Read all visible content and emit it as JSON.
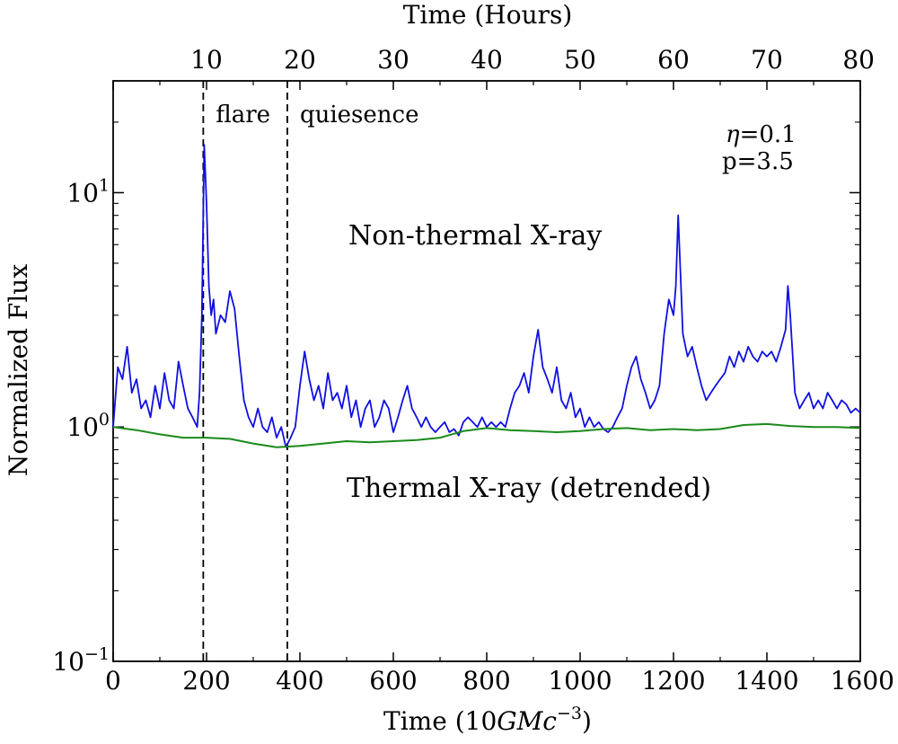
{
  "chart_data": {
    "type": "line",
    "xlabel_prefix": "Time (10",
    "xlabel_var": "GMc",
    "xlabel_exp": "−3",
    "xlabel_suffix": ")",
    "x2label": "Time (Hours)",
    "ylabel": "Normalized Flux",
    "xlim": [
      0,
      1600
    ],
    "ylim": [
      0.1,
      30
    ],
    "yscale": "log",
    "x_ticks": [
      "0",
      "200",
      "400",
      "600",
      "800",
      "1000",
      "1200",
      "1400",
      "1600"
    ],
    "x_tick_values": [
      0,
      200,
      400,
      600,
      800,
      1000,
      1200,
      1400,
      1600
    ],
    "x2_ticks": [
      "10",
      "20",
      "30",
      "40",
      "50",
      "60",
      "70",
      "80"
    ],
    "x2_tick_values": [
      10,
      20,
      30,
      40,
      50,
      60,
      70,
      80
    ],
    "x2_lim": [
      0,
      80
    ],
    "y_ticks": [
      {
        "base": "10",
        "exp": "1",
        "value": 10
      },
      {
        "base": "10",
        "exp": "0",
        "value": 1
      },
      {
        "base": "10",
        "exp": "−1",
        "value": 0.1
      }
    ],
    "grid": false,
    "vlines": [
      {
        "x": 193,
        "label": "flare"
      },
      {
        "x": 373,
        "label": "quiesence"
      }
    ],
    "params_eta_symbol": "η",
    "params_eta_value": "=0.1",
    "params_p": "p=3.5",
    "series": [
      {
        "name": "Non-thermal X-ray",
        "color": "#1010e0",
        "x": [
          0,
          10,
          20,
          30,
          40,
          50,
          60,
          70,
          80,
          90,
          100,
          110,
          120,
          130,
          140,
          150,
          160,
          170,
          180,
          185,
          190,
          195,
          200,
          205,
          210,
          215,
          220,
          230,
          240,
          250,
          260,
          270,
          280,
          290,
          300,
          310,
          320,
          330,
          340,
          350,
          360,
          370,
          380,
          390,
          400,
          410,
          420,
          430,
          440,
          450,
          460,
          470,
          480,
          490,
          500,
          510,
          520,
          530,
          540,
          550,
          560,
          570,
          580,
          590,
          600,
          610,
          620,
          630,
          640,
          650,
          660,
          670,
          680,
          690,
          700,
          710,
          720,
          730,
          740,
          750,
          760,
          770,
          780,
          790,
          800,
          810,
          820,
          830,
          840,
          850,
          860,
          870,
          880,
          890,
          900,
          910,
          920,
          930,
          940,
          950,
          960,
          970,
          980,
          990,
          1000,
          1010,
          1020,
          1030,
          1040,
          1050,
          1060,
          1070,
          1080,
          1090,
          1100,
          1110,
          1120,
          1130,
          1140,
          1150,
          1160,
          1170,
          1180,
          1190,
          1200,
          1205,
          1210,
          1215,
          1220,
          1230,
          1240,
          1250,
          1260,
          1270,
          1280,
          1290,
          1300,
          1310,
          1320,
          1330,
          1340,
          1350,
          1360,
          1370,
          1380,
          1390,
          1400,
          1410,
          1420,
          1430,
          1440,
          1445,
          1450,
          1460,
          1470,
          1480,
          1490,
          1500,
          1510,
          1520,
          1530,
          1540,
          1550,
          1560,
          1570,
          1580,
          1590,
          1600
        ],
        "values": [
          1.0,
          1.8,
          1.6,
          2.2,
          1.4,
          1.6,
          1.2,
          1.3,
          1.1,
          1.5,
          1.2,
          1.7,
          1.3,
          1.2,
          1.9,
          1.5,
          1.2,
          1.1,
          1.0,
          1.4,
          3.0,
          16.0,
          9.0,
          4.0,
          3.0,
          3.5,
          2.5,
          3.0,
          2.8,
          3.8,
          3.2,
          2.0,
          1.3,
          1.1,
          1.0,
          1.2,
          1.0,
          0.95,
          1.1,
          0.9,
          1.0,
          0.82,
          0.9,
          1.0,
          1.5,
          2.1,
          1.6,
          1.3,
          1.5,
          1.2,
          1.7,
          1.3,
          1.4,
          1.2,
          1.5,
          1.1,
          1.3,
          1.0,
          1.2,
          1.3,
          1.0,
          1.1,
          1.3,
          1.2,
          0.95,
          1.1,
          1.3,
          1.5,
          1.2,
          1.1,
          1.0,
          1.1,
          1.0,
          0.95,
          1.0,
          1.05,
          0.95,
          0.98,
          0.92,
          1.05,
          1.1,
          1.05,
          1.0,
          1.1,
          1.0,
          1.05,
          1.0,
          1.05,
          1.0,
          1.2,
          1.4,
          1.5,
          1.7,
          1.4,
          2.0,
          2.6,
          1.8,
          1.6,
          1.4,
          1.8,
          1.3,
          1.2,
          1.4,
          1.1,
          1.2,
          1.0,
          1.1,
          1.0,
          1.05,
          0.98,
          0.95,
          1.0,
          1.1,
          1.2,
          1.5,
          1.8,
          2.0,
          1.6,
          1.4,
          1.2,
          1.3,
          1.5,
          2.5,
          3.5,
          3.0,
          4.0,
          8.0,
          4.5,
          2.5,
          2.0,
          2.2,
          1.8,
          1.5,
          1.3,
          1.4,
          1.5,
          1.6,
          1.7,
          2.0,
          1.8,
          2.1,
          1.9,
          2.2,
          2.0,
          1.9,
          2.1,
          2.0,
          2.1,
          1.9,
          2.2,
          2.6,
          4.0,
          3.0,
          1.4,
          1.2,
          1.3,
          1.4,
          1.2,
          1.3,
          1.2,
          1.4,
          1.3,
          1.2,
          1.3,
          1.25,
          1.15,
          1.2,
          1.15
        ]
      },
      {
        "name": "Thermal X-ray (detrended)",
        "color": "#1a8a1a",
        "x": [
          0,
          50,
          100,
          150,
          200,
          250,
          300,
          350,
          400,
          450,
          500,
          550,
          600,
          650,
          700,
          750,
          800,
          850,
          900,
          950,
          1000,
          1050,
          1100,
          1150,
          1200,
          1250,
          1300,
          1350,
          1400,
          1450,
          1500,
          1550,
          1600
        ],
        "values": [
          1.0,
          0.97,
          0.93,
          0.9,
          0.9,
          0.89,
          0.85,
          0.82,
          0.83,
          0.85,
          0.87,
          0.86,
          0.87,
          0.88,
          0.9,
          0.96,
          0.99,
          0.97,
          0.96,
          0.95,
          0.96,
          0.98,
          0.99,
          0.97,
          0.98,
          0.97,
          0.98,
          1.02,
          1.03,
          1.01,
          1.0,
          1.0,
          0.99
        ]
      }
    ]
  }
}
